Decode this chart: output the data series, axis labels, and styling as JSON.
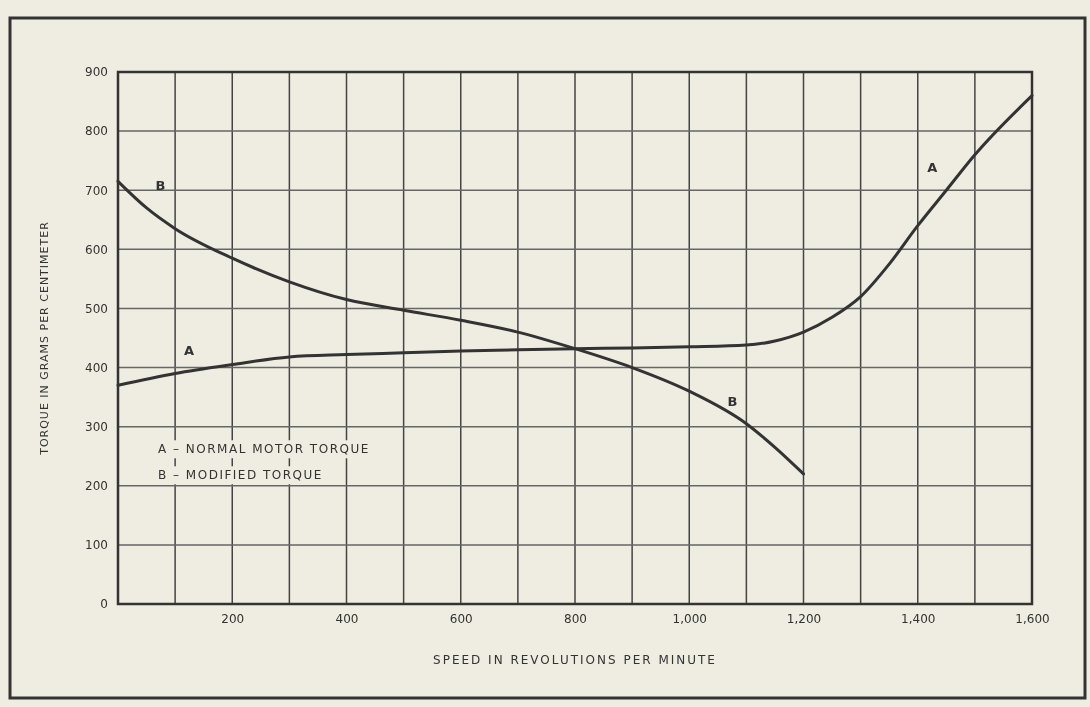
{
  "chart_data": {
    "type": "line",
    "xlabel": "SPEED IN REVOLUTIONS PER MINUTE",
    "ylabel": "TORQUE IN GRAMS PER CENTIMETER",
    "xlim": [
      0,
      1600
    ],
    "ylim": [
      0,
      900
    ],
    "xticks": [
      {
        "value": 100,
        "label": null
      },
      200,
      {
        "value": 300,
        "label": null
      },
      400,
      {
        "value": 500,
        "label": null
      },
      600,
      {
        "value": 700,
        "label": null
      },
      800,
      {
        "value": 900,
        "label": null
      },
      {
        "value": 1000,
        "label": "1,000"
      },
      {
        "value": 1100,
        "label": null
      },
      {
        "value": 1200,
        "label": "1,200"
      },
      {
        "value": 1300,
        "label": null
      },
      {
        "value": 1400,
        "label": "1,400"
      },
      {
        "value": 1500,
        "label": null
      },
      {
        "value": 1600,
        "label": "1,600"
      }
    ],
    "yticks": [
      0,
      100,
      200,
      300,
      400,
      500,
      600,
      700,
      800,
      900
    ],
    "grid": true,
    "marker": "none",
    "line_style": "solid",
    "series": [
      {
        "name": "A",
        "color": "#333333",
        "x": [
          0,
          100,
          200,
          300,
          400,
          500,
          600,
          700,
          800,
          900,
          1000,
          1100,
          1150,
          1200,
          1250,
          1300,
          1350,
          1400,
          1450,
          1500,
          1600
        ],
        "values": [
          370,
          390,
          405,
          418,
          422,
          425,
          428,
          430,
          432,
          433,
          435,
          438,
          445,
          460,
          485,
          520,
          575,
          640,
          700,
          760,
          860
        ]
      },
      {
        "name": "B",
        "color": "#333333",
        "x": [
          0,
          50,
          100,
          200,
          300,
          400,
          500,
          600,
          700,
          800,
          900,
          1000,
          1100,
          1150,
          1200
        ],
        "values": [
          715,
          670,
          635,
          585,
          545,
          515,
          497,
          480,
          460,
          432,
          400,
          360,
          305,
          265,
          220
        ]
      }
    ],
    "annotations": [
      "A – NORMAL MOTOR TORQUE",
      "B – MODIFIED TORQUE"
    ]
  }
}
